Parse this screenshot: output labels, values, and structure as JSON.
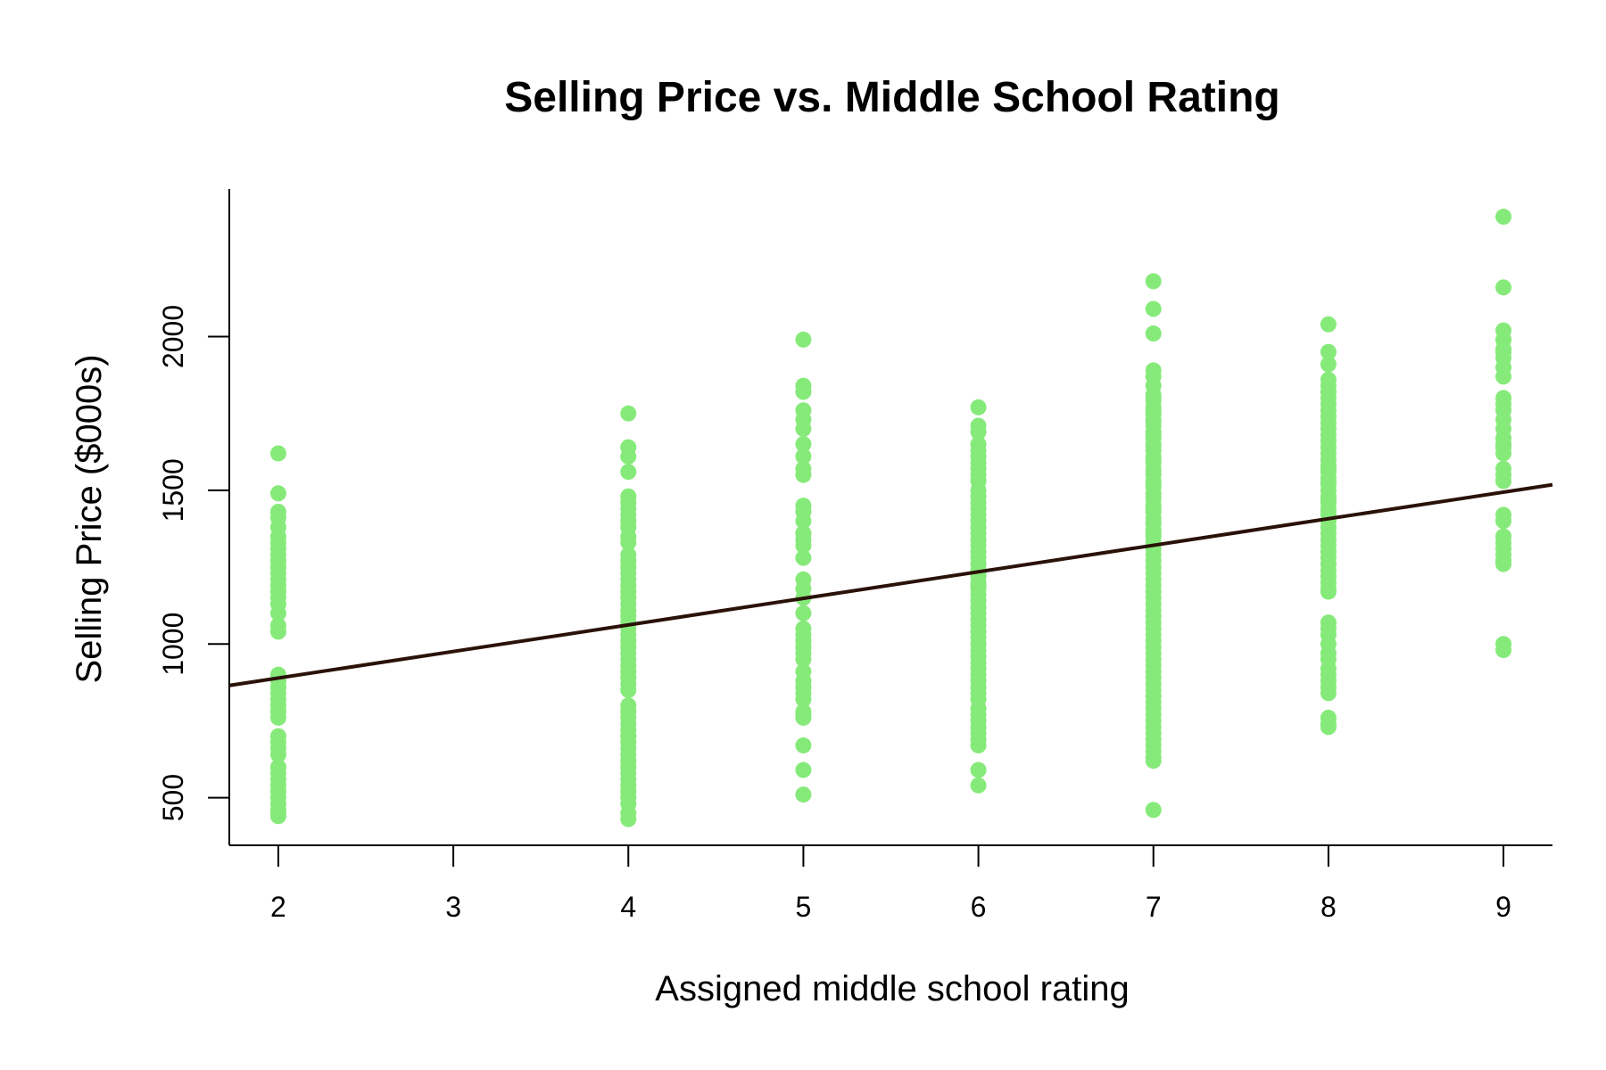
{
  "chart_data": {
    "type": "scatter",
    "title": "Selling Price vs. Middle School Rating",
    "xlabel": "Assigned middle school rating",
    "ylabel": "Selling Price ($000s)",
    "xlim": [
      1.72,
      9.28
    ],
    "ylim": [
      345,
      2480
    ],
    "xticks": [
      2,
      3,
      4,
      5,
      6,
      7,
      8,
      9
    ],
    "xtick_labels": [
      "2",
      "3",
      "4",
      "5",
      "6",
      "7",
      "8",
      "9"
    ],
    "yticks": [
      500,
      1000,
      1500,
      2000
    ],
    "ytick_labels": [
      "500",
      "1000",
      "1500",
      "2000"
    ],
    "grid": false,
    "point_color": "#86ea7a",
    "line_color": "#2a1208",
    "series": [
      {
        "x": [
          2,
          2,
          2,
          2,
          2,
          2,
          2,
          2,
          2,
          2,
          2,
          2,
          2,
          2,
          2,
          2,
          2,
          2,
          2,
          2,
          2,
          2,
          2,
          2,
          2,
          2,
          2,
          2,
          2,
          2,
          2,
          2,
          2,
          2,
          2,
          2,
          2,
          2,
          2,
          2,
          2,
          2
        ],
        "y": [
          1620,
          1490,
          1430,
          1410,
          1380,
          1350,
          1330,
          1310,
          1290,
          1270,
          1250,
          1230,
          1210,
          1190,
          1170,
          1150,
          1130,
          1100,
          1060,
          1040,
          900,
          880,
          860,
          840,
          820,
          800,
          780,
          760,
          700,
          680,
          660,
          640,
          600,
          580,
          560,
          540,
          520,
          500,
          480,
          460,
          450,
          440
        ]
      },
      {
        "x": [
          4,
          4,
          4,
          4,
          4,
          4,
          4,
          4,
          4,
          4,
          4,
          4,
          4,
          4,
          4,
          4,
          4,
          4,
          4,
          4,
          4,
          4,
          4,
          4,
          4,
          4,
          4,
          4,
          4,
          4,
          4,
          4,
          4,
          4,
          4,
          4,
          4,
          4,
          4,
          4,
          4,
          4,
          4,
          4,
          4,
          4,
          4,
          4,
          4,
          4,
          4,
          4,
          4,
          4
        ],
        "y": [
          1750,
          1640,
          1610,
          1560,
          1480,
          1460,
          1440,
          1420,
          1400,
          1380,
          1350,
          1330,
          1290,
          1270,
          1250,
          1230,
          1210,
          1190,
          1170,
          1150,
          1130,
          1110,
          1090,
          1070,
          1050,
          1030,
          1010,
          990,
          970,
          950,
          930,
          910,
          890,
          870,
          850,
          800,
          780,
          760,
          740,
          720,
          700,
          680,
          660,
          640,
          620,
          600,
          580,
          560,
          540,
          520,
          500,
          480,
          450,
          430
        ]
      },
      {
        "x": [
          5,
          5,
          5,
          5,
          5,
          5,
          5,
          5,
          5,
          5,
          5,
          5,
          5,
          5,
          5,
          5,
          5,
          5,
          5,
          5,
          5,
          5,
          5,
          5,
          5,
          5,
          5,
          5,
          5,
          5,
          5,
          5,
          5,
          5,
          5,
          5,
          5,
          5,
          5,
          5
        ],
        "y": [
          1990,
          1840,
          1820,
          1760,
          1730,
          1700,
          1650,
          1610,
          1570,
          1550,
          1450,
          1430,
          1400,
          1360,
          1340,
          1320,
          1280,
          1210,
          1180,
          1150,
          1100,
          1050,
          1030,
          1010,
          990,
          970,
          950,
          910,
          880,
          860,
          840,
          820,
          780,
          770,
          760,
          670,
          590,
          510,
          990,
          1360
        ]
      },
      {
        "x": [
          6,
          6,
          6,
          6,
          6,
          6,
          6,
          6,
          6,
          6,
          6,
          6,
          6,
          6,
          6,
          6,
          6,
          6,
          6,
          6,
          6,
          6,
          6,
          6,
          6,
          6,
          6,
          6,
          6,
          6,
          6,
          6,
          6,
          6,
          6,
          6,
          6,
          6,
          6,
          6,
          6,
          6,
          6,
          6,
          6,
          6,
          6,
          6,
          6,
          6,
          6,
          6,
          6,
          6,
          6,
          6
        ],
        "y": [
          1770,
          1710,
          1690,
          1650,
          1630,
          1610,
          1590,
          1570,
          1550,
          1530,
          1500,
          1480,
          1460,
          1440,
          1420,
          1400,
          1380,
          1360,
          1340,
          1320,
          1300,
          1280,
          1260,
          1240,
          1220,
          1200,
          1180,
          1160,
          1140,
          1120,
          1100,
          1080,
          1060,
          1040,
          1020,
          1000,
          980,
          960,
          940,
          920,
          900,
          880,
          860,
          840,
          820,
          790,
          770,
          750,
          730,
          710,
          690,
          670,
          590,
          540,
          1190,
          1230
        ]
      },
      {
        "x": [
          7,
          7,
          7,
          7,
          7,
          7,
          7,
          7,
          7,
          7,
          7,
          7,
          7,
          7,
          7,
          7,
          7,
          7,
          7,
          7,
          7,
          7,
          7,
          7,
          7,
          7,
          7,
          7,
          7,
          7,
          7,
          7,
          7,
          7,
          7,
          7,
          7,
          7,
          7,
          7,
          7,
          7,
          7,
          7,
          7,
          7,
          7,
          7,
          7,
          7,
          7,
          7,
          7,
          7,
          7,
          7,
          7,
          7,
          7,
          7,
          7,
          7,
          7,
          7,
          7,
          7,
          7,
          7,
          7,
          7,
          7,
          7,
          7,
          7,
          7,
          7,
          7,
          7,
          7,
          7
        ],
        "y": [
          2180,
          2090,
          2010,
          1890,
          1870,
          1840,
          1810,
          1790,
          1770,
          1750,
          1730,
          1710,
          1690,
          1670,
          1650,
          1630,
          1610,
          1590,
          1570,
          1550,
          1530,
          1510,
          1490,
          1470,
          1450,
          1430,
          1410,
          1390,
          1370,
          1350,
          1330,
          1310,
          1290,
          1270,
          1250,
          1230,
          1210,
          1190,
          1170,
          1150,
          1130,
          1110,
          1090,
          1070,
          1050,
          1030,
          1010,
          990,
          970,
          950,
          930,
          910,
          890,
          870,
          850,
          830,
          810,
          790,
          770,
          750,
          730,
          710,
          690,
          670,
          650,
          630,
          620,
          460,
          1800,
          1760,
          1720,
          1680,
          1640,
          1600,
          1560,
          1520,
          1480,
          1440,
          1400,
          1360
        ]
      },
      {
        "x": [
          8,
          8,
          8,
          8,
          8,
          8,
          8,
          8,
          8,
          8,
          8,
          8,
          8,
          8,
          8,
          8,
          8,
          8,
          8,
          8,
          8,
          8,
          8,
          8,
          8,
          8,
          8,
          8,
          8,
          8,
          8,
          8,
          8,
          8,
          8,
          8,
          8,
          8,
          8,
          8,
          8,
          8,
          8,
          8,
          8,
          8,
          8,
          8,
          8,
          8,
          8,
          8,
          8,
          8,
          8,
          8,
          8
        ],
        "y": [
          2040,
          1950,
          1910,
          1860,
          1840,
          1820,
          1800,
          1780,
          1760,
          1740,
          1720,
          1700,
          1680,
          1660,
          1640,
          1620,
          1600,
          1580,
          1560,
          1540,
          1520,
          1500,
          1480,
          1460,
          1440,
          1420,
          1400,
          1380,
          1360,
          1340,
          1320,
          1300,
          1280,
          1260,
          1240,
          1220,
          1200,
          1180,
          1170,
          1070,
          1050,
          1030,
          1000,
          970,
          950,
          920,
          900,
          880,
          860,
          840,
          760,
          740,
          730,
          1570,
          1530,
          1470,
          1430
        ]
      },
      {
        "x": [
          9,
          9,
          9,
          9,
          9,
          9,
          9,
          9,
          9,
          9,
          9,
          9,
          9,
          9,
          9,
          9,
          9,
          9,
          9,
          9,
          9,
          9,
          9,
          9,
          9,
          9,
          9,
          9,
          9,
          9,
          9,
          9
        ],
        "y": [
          2390,
          2160,
          2020,
          1990,
          1960,
          1930,
          1900,
          1870,
          1800,
          1780,
          1760,
          1730,
          1700,
          1670,
          1640,
          1620,
          1570,
          1550,
          1530,
          1420,
          1400,
          1350,
          1330,
          1310,
          1290,
          1270,
          1260,
          1000,
          980,
          1990,
          1950,
          1650
        ]
      }
    ],
    "regression_line": {
      "x": [
        1.72,
        9.28
      ],
      "y": [
        865,
        1518
      ]
    }
  }
}
